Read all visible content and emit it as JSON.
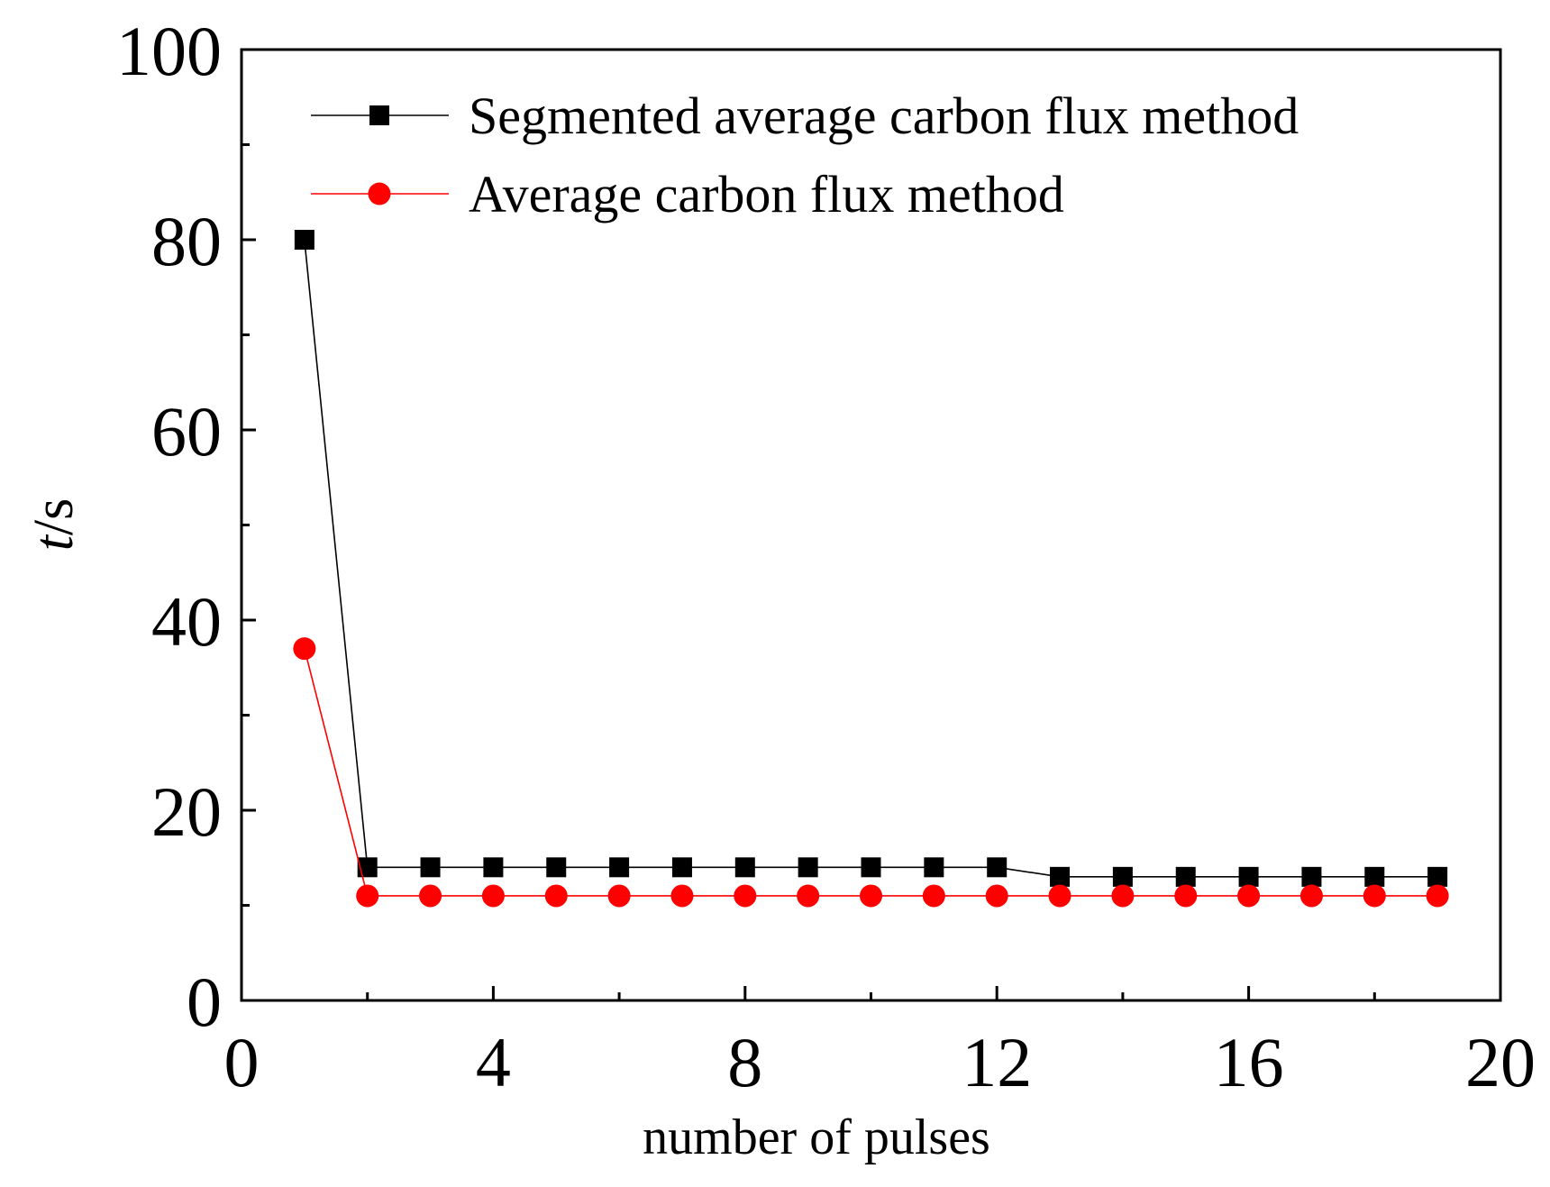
{
  "chart_data": {
    "type": "line",
    "title": "",
    "xlabel": "number of pulses",
    "ylabel": "t/s",
    "ylabel_parts": {
      "var": "t",
      "unit": "/s"
    },
    "xlim": [
      0,
      20
    ],
    "ylim": [
      0,
      100
    ],
    "xticks": [
      0,
      4,
      8,
      12,
      16,
      20
    ],
    "yticks": [
      0,
      20,
      40,
      60,
      80,
      100
    ],
    "x_minor_step": 2,
    "y_minor_step": 10,
    "grid": false,
    "legend_position": "top-right",
    "series": [
      {
        "name": "Segmented average carbon flux method",
        "color": "#000000",
        "marker": "square",
        "x": [
          1,
          2,
          3,
          4,
          5,
          6,
          7,
          8,
          9,
          10,
          11,
          12,
          13,
          14,
          15,
          16,
          17,
          18,
          19
        ],
        "values": [
          80,
          14,
          14,
          14,
          14,
          14,
          14,
          14,
          14,
          14,
          14,
          14,
          13,
          13,
          13,
          13,
          13,
          13,
          13
        ]
      },
      {
        "name": "Average carbon flux method",
        "color": "#ff0000",
        "marker": "circle",
        "x": [
          1,
          2,
          3,
          4,
          5,
          6,
          7,
          8,
          9,
          10,
          11,
          12,
          13,
          14,
          15,
          16,
          17,
          18,
          19
        ],
        "values": [
          37,
          11,
          11,
          11,
          11,
          11,
          11,
          11,
          11,
          11,
          11,
          11,
          11,
          11,
          11,
          11,
          11,
          11,
          11
        ]
      }
    ]
  }
}
